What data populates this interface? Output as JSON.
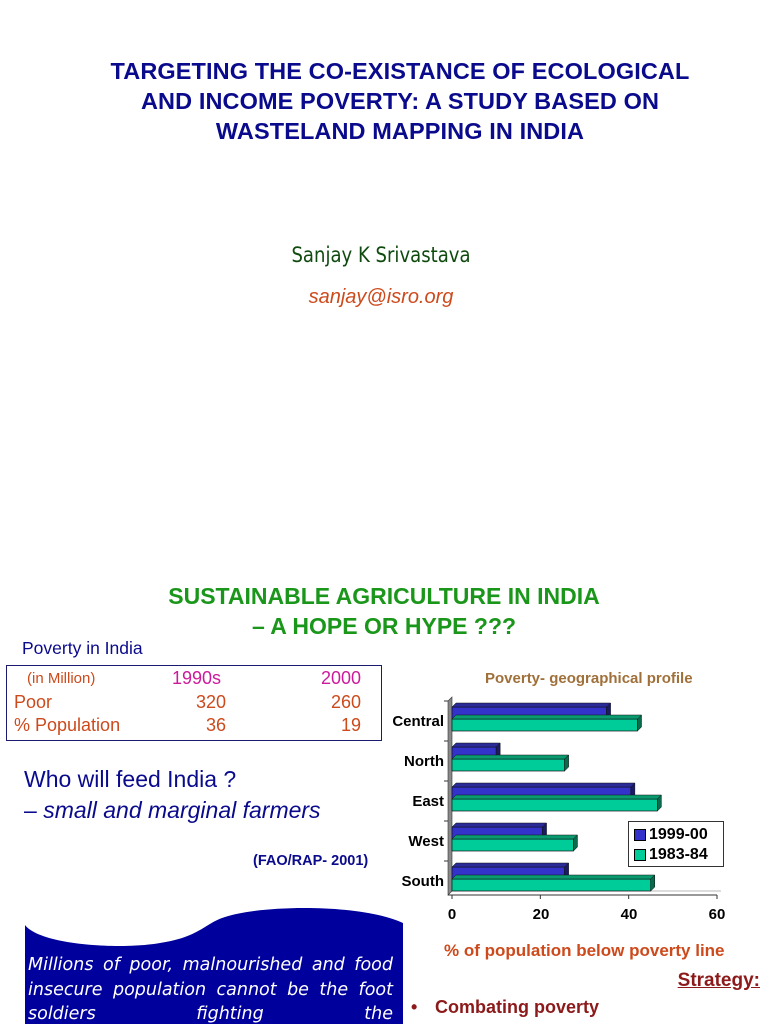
{
  "slide1": {
    "title_lines": [
      "TARGETING THE CO-EXISTANCE OF ECOLOGICAL",
      "AND INCOME POVERTY: A STUDY BASED ON",
      "WASTELAND MAPPING IN INDIA"
    ],
    "author": "Sanjay K Srivastava",
    "email": "sanjay@isro.org"
  },
  "slide2": {
    "title_lines": [
      "SUSTAINABLE AGRICULTURE IN INDIA",
      "– A HOPE OR HYPE ???"
    ],
    "poverty_table": {
      "heading": "Poverty in India",
      "header": {
        "label": "(in Million)",
        "col1": "1990s",
        "col2": "2000"
      },
      "rows": [
        {
          "label": "Poor",
          "col1": "320",
          "col2": "260"
        },
        {
          "label": "% Population",
          "col1": "36",
          "col2": "19"
        }
      ]
    },
    "feed": {
      "question": "Who will feed India ?",
      "dash": "– ",
      "answer": "small and marginal farmers",
      "source": "(FAO/RAP- 2001)"
    },
    "callout_text": "Millions of poor, malnourished and food insecure population cannot be the foot soldiers fighting the",
    "strategy": {
      "heading": "Strategy:",
      "bullets": [
        "Combating poverty"
      ],
      "bullet_glyph": "•"
    },
    "colors": {
      "series_1999": "#3333cc",
      "series_1983": "#00cc99",
      "callout_bg": "#00009c"
    }
  },
  "chart_data": {
    "type": "bar",
    "orientation": "horizontal",
    "title": "Poverty-  geographical profile",
    "categories": [
      "Central",
      "North",
      "East",
      "West",
      "South"
    ],
    "series": [
      {
        "name": "1999-00",
        "values": [
          35,
          10,
          40.5,
          20.5,
          25.5
        ]
      },
      {
        "name": "1983-84",
        "values": [
          42,
          25.5,
          46.5,
          27.5,
          45
        ]
      }
    ],
    "xlabel": "% of population below poverty line",
    "ylabel": "",
    "xlim": [
      0,
      60
    ],
    "xticks": [
      "0",
      "20",
      "40",
      "60"
    ],
    "legend_position": "lower right inside",
    "grid": false
  }
}
